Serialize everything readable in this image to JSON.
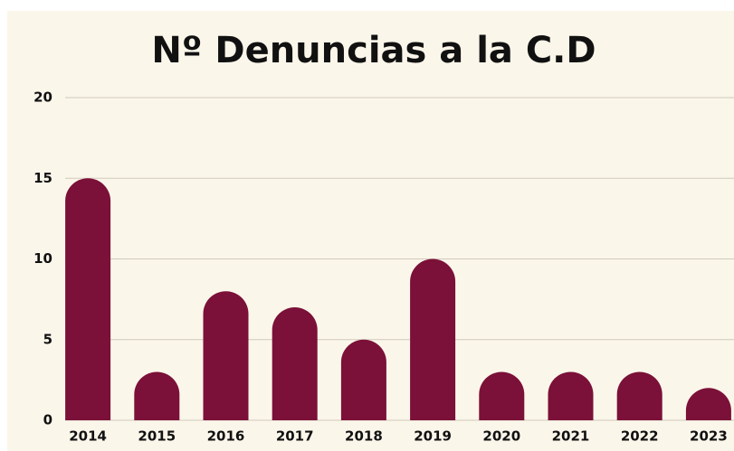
{
  "chart_data": {
    "type": "bar",
    "title": "Nº Denuncias a la C.D",
    "categories": [
      "2014",
      "2015",
      "2016",
      "2017",
      "2018",
      "2019",
      "2020",
      "2021",
      "2022",
      "2023"
    ],
    "values": [
      15,
      3,
      8,
      7,
      5,
      10,
      3,
      3,
      3,
      2
    ],
    "color": "#7b1038",
    "ylim": [
      0,
      20
    ],
    "yticks": [
      0,
      5,
      10,
      15,
      20
    ],
    "grid": true
  }
}
